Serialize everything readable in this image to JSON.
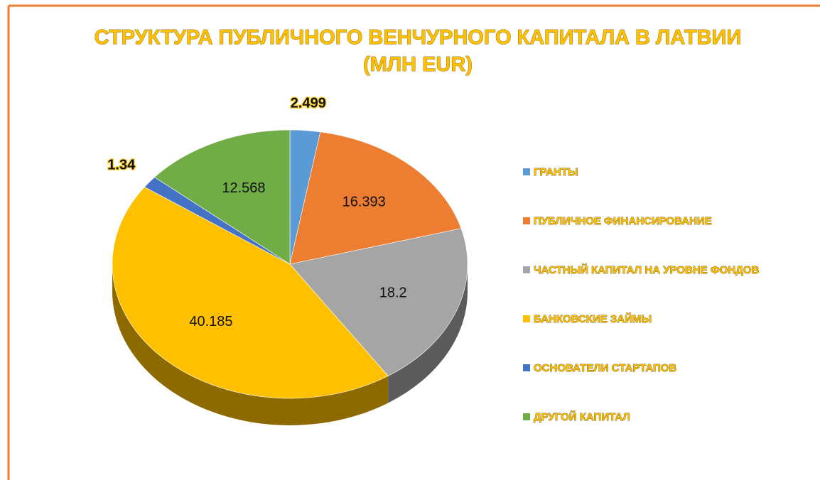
{
  "chart_data": {
    "type": "pie",
    "title": [
      "СТРУКТУРА ПУБЛИЧНОГО ВЕНЧУРНОГО КАПИТАЛА В ЛАТВИИ",
      "(МЛН EUR)"
    ],
    "categories": [
      "ГРАНТЫ",
      "ПУБЛИЧНОЕ ФИНАНСИРОВАНИЕ",
      "ЧАСТНЫЙ КАПИТАЛ НА УРОВНЕ ФОНДОВ",
      "БАНКОВСКИЕ ЗАЙМЫ",
      "ОСНОВАТЕЛИ СТАРТАПОВ",
      "ДРУГОЙ КАПИТАЛ"
    ],
    "values": [
      2.499,
      16.393,
      18.2,
      40.185,
      1.34,
      12.568
    ],
    "colors": [
      "#5b9bd5",
      "#ed7d31",
      "#a5a5a5",
      "#ffc000",
      "#4472c4",
      "#70ad47"
    ],
    "legend": "right"
  }
}
